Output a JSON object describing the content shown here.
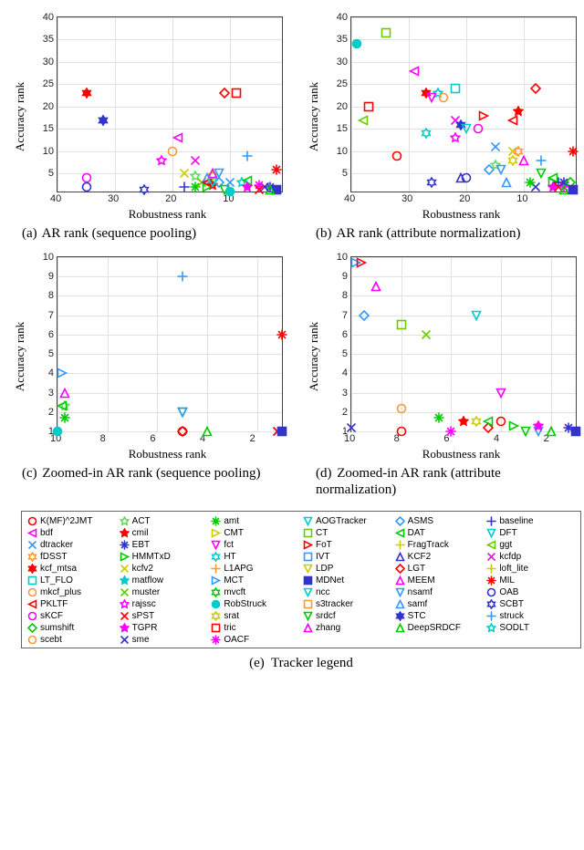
{
  "markers": {
    "K(MF)^2JMT": {
      "color": "#ff0000",
      "shape": "circle"
    },
    "ACT": {
      "color": "#66d966",
      "shape": "star5"
    },
    "amt": {
      "color": "#00cc00",
      "shape": "asterisk"
    },
    "AOGTracker": {
      "color": "#00cccc",
      "shape": "triD"
    },
    "ASMS": {
      "color": "#3399ff",
      "shape": "diamond"
    },
    "baseline": {
      "color": "#3333cc",
      "shape": "plus"
    },
    "bdf": {
      "color": "#ff00ff",
      "shape": "triL"
    },
    "cmil": {
      "color": "#ff0000",
      "shape": "star5f"
    },
    "CMT": {
      "color": "#cccc00",
      "shape": "triR"
    },
    "CT": {
      "color": "#66cc00",
      "shape": "square"
    },
    "DAT": {
      "color": "#00cc00",
      "shape": "triL"
    },
    "DFT": {
      "color": "#00cccc",
      "shape": "triD"
    },
    "dtracker": {
      "color": "#3399ff",
      "shape": "x"
    },
    "EBT": {
      "color": "#3333cc",
      "shape": "asterisk"
    },
    "fct": {
      "color": "#ff00ff",
      "shape": "triD"
    },
    "FoT": {
      "color": "#ff0000",
      "shape": "triR"
    },
    "FragTrack": {
      "color": "#cccc00",
      "shape": "plus"
    },
    "ggt": {
      "color": "#66cc00",
      "shape": "triL"
    },
    "fDSST": {
      "color": "#ff9933",
      "shape": "star6"
    },
    "HMMTxD": {
      "color": "#00cc00",
      "shape": "triR"
    },
    "HT": {
      "color": "#00cccc",
      "shape": "star6"
    },
    "IVT": {
      "color": "#3399ff",
      "shape": "square"
    },
    "KCF2": {
      "color": "#3333cc",
      "shape": "triU"
    },
    "kcfdp": {
      "color": "#ff00ff",
      "shape": "x"
    },
    "kcf_mtsa": {
      "color": "#ff0000",
      "shape": "star6f"
    },
    "kcfv2": {
      "color": "#cccc00",
      "shape": "x"
    },
    "L1APG": {
      "color": "#ff9933",
      "shape": "plus"
    },
    "LDP": {
      "color": "#cccc00",
      "shape": "triD"
    },
    "LGT": {
      "color": "#ff0000",
      "shape": "diamond"
    },
    "loft_lite": {
      "color": "#cccc00",
      "shape": "plus"
    },
    "LT_FLO": {
      "color": "#00cccc",
      "shape": "square"
    },
    "matflow": {
      "color": "#00cccc",
      "shape": "star5f"
    },
    "MCT": {
      "color": "#3399ff",
      "shape": "triR"
    },
    "MDNet": {
      "color": "#3333cc",
      "shape": "squaref"
    },
    "MEEM": {
      "color": "#ff00ff",
      "shape": "triU"
    },
    "MIL": {
      "color": "#ff0000",
      "shape": "asterisk"
    },
    "mkcf_plus": {
      "color": "#ff9933",
      "shape": "circle"
    },
    "muster": {
      "color": "#66cc00",
      "shape": "x"
    },
    "mvcft": {
      "color": "#00cc00",
      "shape": "star6"
    },
    "ncc": {
      "color": "#00cccc",
      "shape": "triD"
    },
    "nsamf": {
      "color": "#3399ff",
      "shape": "triD"
    },
    "OAB": {
      "color": "#3333cc",
      "shape": "circle"
    },
    "PKLTF": {
      "color": "#ff0000",
      "shape": "triL"
    },
    "rajssc": {
      "color": "#ff00ff",
      "shape": "star5"
    },
    "RobStruck": {
      "color": "#00cccc",
      "shape": "circlef"
    },
    "s3tracker": {
      "color": "#ff9933",
      "shape": "square"
    },
    "samf": {
      "color": "#3399ff",
      "shape": "triU"
    },
    "SCBT": {
      "color": "#3333cc",
      "shape": "star6"
    },
    "sKCF": {
      "color": "#ff00ff",
      "shape": "circle"
    },
    "sPST": {
      "color": "#ff0000",
      "shape": "x"
    },
    "srat": {
      "color": "#cccc00",
      "shape": "star6"
    },
    "srdcf": {
      "color": "#00cc00",
      "shape": "triD"
    },
    "STC": {
      "color": "#3333cc",
      "shape": "star6f"
    },
    "struck": {
      "color": "#3399ff",
      "shape": "plus"
    },
    "sumshift": {
      "color": "#00cc00",
      "shape": "diamond"
    },
    "TGPR": {
      "color": "#ff00ff",
      "shape": "star5f"
    },
    "tric": {
      "color": "#ff0000",
      "shape": "square"
    },
    "zhang": {
      "color": "#ff00ff",
      "shape": "triU"
    },
    "DeepSRDCF": {
      "color": "#00cc00",
      "shape": "triU"
    },
    "SODLT": {
      "color": "#00cccc",
      "shape": "star5"
    },
    "scebt": {
      "color": "#ff9933",
      "shape": "circle"
    },
    "sme": {
      "color": "#3333cc",
      "shape": "x"
    },
    "OACF": {
      "color": "#ff00ff",
      "shape": "asterisk"
    }
  },
  "legend_order": [
    "K(MF)^2JMT",
    "ACT",
    "amt",
    "AOGTracker",
    "ASMS",
    "baseline",
    "bdf",
    "cmil",
    "CMT",
    "CT",
    "DAT",
    "DFT",
    "dtracker",
    "EBT",
    "fct",
    "FoT",
    "FragTrack",
    "ggt",
    "fDSST",
    "HMMTxD",
    "HT",
    "IVT",
    "KCF2",
    "kcfdp",
    "kcf_mtsa",
    "kcfv2",
    "L1APG",
    "LDP",
    "LGT",
    "loft_lite",
    "LT_FLO",
    "matflow",
    "MCT",
    "MDNet",
    "MEEM",
    "MIL",
    "mkcf_plus",
    "muster",
    "mvcft",
    "ncc",
    "nsamf",
    "OAB",
    "PKLTF",
    "rajssc",
    "RobStruck",
    "s3tracker",
    "samf",
    "SCBT",
    "sKCF",
    "sPST",
    "srat",
    "srdcf",
    "STC",
    "struck",
    "sumshift",
    "TGPR",
    "tric",
    "zhang",
    "DeepSRDCF",
    "SODLT",
    "scebt",
    "sme",
    "OACF"
  ],
  "panel_a": {
    "caption_letter": "(a)",
    "caption_text": "AR rank (sequence pooling)",
    "xlabel": "Robustness rank",
    "ylabel": "Accuracy rank",
    "xlim": [
      40,
      1
    ],
    "ylim": [
      40,
      1
    ],
    "xticks": [
      40,
      30,
      20,
      10
    ],
    "yticks": [
      5,
      10,
      15,
      20,
      25,
      30,
      35,
      40
    ],
    "points": [
      {
        "m": "OAB",
        "x": 35,
        "y": 2
      },
      {
        "m": "sKCF",
        "x": 35,
        "y": 4
      },
      {
        "m": "STC",
        "x": 32,
        "y": 17
      },
      {
        "m": "star6_b",
        "x": 32,
        "y": 17,
        "mk": "SCBT"
      },
      {
        "m": "kcf_mtsa",
        "x": 35,
        "y": 23
      },
      {
        "m": "SCBT",
        "x": 25,
        "y": 1.5
      },
      {
        "m": "baseline",
        "x": 18,
        "y": 2
      },
      {
        "m": "rajssc",
        "x": 22,
        "y": 8
      },
      {
        "m": "mkcf_plus",
        "x": 20,
        "y": 10
      },
      {
        "m": "kcfv2",
        "x": 18,
        "y": 5
      },
      {
        "m": "kcfdp",
        "x": 16,
        "y": 8
      },
      {
        "m": "ACT",
        "x": 16,
        "y": 4.5
      },
      {
        "m": "bdf",
        "x": 19,
        "y": 13
      },
      {
        "m": "amt",
        "x": 16,
        "y": 2
      },
      {
        "m": "muster",
        "x": 15,
        "y": 3
      },
      {
        "m": "cmil",
        "x": 13,
        "y": 2.5
      },
      {
        "m": "srat",
        "x": 13,
        "y": 4.5
      },
      {
        "m": "samf",
        "x": 14,
        "y": 4
      },
      {
        "m": "MEEM",
        "x": 13,
        "y": 5
      },
      {
        "m": "ASMS",
        "x": 12,
        "y": 3
      },
      {
        "m": "nsamf",
        "x": 12,
        "y": 5
      },
      {
        "m": "HMMTxD",
        "x": 14,
        "y": 2
      },
      {
        "m": "srdcf",
        "x": 11,
        "y": 1.5
      },
      {
        "m": "dtracker",
        "x": 10,
        "y": 3
      },
      {
        "m": "PKLTF",
        "x": 14,
        "y": 3
      },
      {
        "m": "AOGTracker",
        "x": 13,
        "y": 3
      },
      {
        "m": "RobStruck",
        "x": 10,
        "y": 1
      },
      {
        "m": "LGT",
        "x": 11,
        "y": 23
      },
      {
        "m": "tric",
        "x": 9,
        "y": 23
      },
      {
        "m": "SODLT",
        "x": 8,
        "y": 3
      },
      {
        "m": "DAT",
        "x": 7,
        "y": 3.5
      },
      {
        "m": "TGPR",
        "x": 7,
        "y": 2
      },
      {
        "m": "struck",
        "x": 7,
        "y": 9
      },
      {
        "m": "EBT",
        "x": 3,
        "y": 2
      },
      {
        "m": "MDNet",
        "x": 2,
        "y": 1.5
      },
      {
        "m": "DeepSRDCF",
        "x": 3,
        "y": 1.5
      },
      {
        "m": "sme",
        "x": 4,
        "y": 2
      },
      {
        "m": "OACF",
        "x": 5,
        "y": 2.5
      },
      {
        "m": "sPST",
        "x": 5,
        "y": 1.5
      },
      {
        "m": "MIL",
        "x": 2,
        "y": 6
      }
    ]
  },
  "panel_b": {
    "caption_letter": "(b)",
    "caption_text": "AR rank (attribute normalization)",
    "xlabel": "Robustness rank",
    "ylabel": "Accuracy rank",
    "xlim": [
      40,
      1
    ],
    "ylim": [
      40,
      1
    ],
    "xticks": [
      40,
      30,
      20,
      10
    ],
    "yticks": [
      5,
      10,
      15,
      20,
      25,
      30,
      35,
      40
    ],
    "points": [
      {
        "m": "RobStruck",
        "x": 39,
        "y": 34
      },
      {
        "m": "ggt",
        "x": 38,
        "y": 17
      },
      {
        "m": "tric",
        "x": 37,
        "y": 20
      },
      {
        "m": "CT",
        "x": 34,
        "y": 36.5
      },
      {
        "m": "K(MF)^2JMT",
        "x": 32,
        "y": 9
      },
      {
        "m": "bdf",
        "x": 29,
        "y": 28
      },
      {
        "m": "kcf_mtsa",
        "x": 27,
        "y": 23
      },
      {
        "m": "SODLT",
        "x": 25,
        "y": 23
      },
      {
        "m": "fct",
        "x": 26,
        "y": 22
      },
      {
        "m": "mkcf_plus",
        "x": 24,
        "y": 22
      },
      {
        "m": "HT",
        "x": 27,
        "y": 14
      },
      {
        "m": "SCBT",
        "x": 26,
        "y": 3
      },
      {
        "m": "LT_FLO",
        "x": 22,
        "y": 24
      },
      {
        "m": "kcfdp",
        "x": 22,
        "y": 17
      },
      {
        "m": "rajssc",
        "x": 22,
        "y": 13
      },
      {
        "m": "STC",
        "x": 21,
        "y": 16
      },
      {
        "m": "KCF2",
        "x": 21,
        "y": 4
      },
      {
        "m": "OAB",
        "x": 20,
        "y": 4
      },
      {
        "m": "AOGTracker",
        "x": 20,
        "y": 15
      },
      {
        "m": "sKCF",
        "x": 18,
        "y": 15
      },
      {
        "m": "FoT",
        "x": 17,
        "y": 18
      },
      {
        "m": "ASMS",
        "x": 16,
        "y": 6
      },
      {
        "m": "ACT",
        "x": 15,
        "y": 7
      },
      {
        "m": "nsamf",
        "x": 14,
        "y": 6
      },
      {
        "m": "samf",
        "x": 13,
        "y": 3
      },
      {
        "m": "dtracker",
        "x": 15,
        "y": 11
      },
      {
        "m": "srat",
        "x": 12,
        "y": 8
      },
      {
        "m": "kcfv2",
        "x": 12,
        "y": 10
      },
      {
        "m": "PKLTF",
        "x": 12,
        "y": 17
      },
      {
        "m": "cmil",
        "x": 11,
        "y": 19
      },
      {
        "m": "fDSST",
        "x": 11,
        "y": 10
      },
      {
        "m": "MEEM",
        "x": 10,
        "y": 8
      },
      {
        "m": "LGT",
        "x": 8,
        "y": 24
      },
      {
        "m": "sme",
        "x": 8,
        "y": 2
      },
      {
        "m": "amt",
        "x": 9,
        "y": 3
      },
      {
        "m": "srdcf",
        "x": 7,
        "y": 5
      },
      {
        "m": "struck",
        "x": 7,
        "y": 8
      },
      {
        "m": "HMMTxD",
        "x": 5,
        "y": 3
      },
      {
        "m": "TGPR",
        "x": 5,
        "y": 2
      },
      {
        "m": "DAT",
        "x": 5,
        "y": 4
      },
      {
        "m": "baseline",
        "x": 4,
        "y": 3
      },
      {
        "m": "sPST",
        "x": 4,
        "y": 2
      },
      {
        "m": "OACF",
        "x": 3,
        "y": 2
      },
      {
        "m": "EBT",
        "x": 3,
        "y": 3
      },
      {
        "m": "DeepSRDCF",
        "x": 3,
        "y": 1.5
      },
      {
        "m": "sumshift",
        "x": 2,
        "y": 3
      },
      {
        "m": "MDNet",
        "x": 1.5,
        "y": 1.5
      },
      {
        "m": "MIL",
        "x": 1.5,
        "y": 10
      }
    ]
  },
  "panel_c": {
    "caption_letter": "(c)",
    "caption_text": "Zoomed-in AR rank (sequence pooling)",
    "xlabel": "Robustness rank",
    "ylabel": "Accuracy rank",
    "xlim": [
      10,
      1
    ],
    "ylim": [
      10,
      1
    ],
    "xticks": [
      10,
      8,
      6,
      4,
      2
    ],
    "yticks": [
      1,
      2,
      3,
      4,
      5,
      6,
      7,
      8,
      9,
      10
    ],
    "points": [
      {
        "m": "RobStruck",
        "x": 10,
        "y": 1
      },
      {
        "m": "amt",
        "x": 9.7,
        "y": 1.7
      },
      {
        "m": "ACT",
        "x": 9.7,
        "y": 2.3
      },
      {
        "m": "DAT",
        "x": 9.8,
        "y": 2.3
      },
      {
        "m": "MEEM",
        "x": 9.7,
        "y": 3
      },
      {
        "m": "MCT",
        "x": 9.8,
        "y": 4
      },
      {
        "m": "LGT",
        "x": 5,
        "y": 1
      },
      {
        "m": "K(MF)^2JMT",
        "x": 5,
        "y": 1
      },
      {
        "m": "AOGTracker",
        "x": 5,
        "y": 2
      },
      {
        "m": "srdcf",
        "x": 5,
        "y": 2
      },
      {
        "m": "nsamf",
        "x": 5,
        "y": 2
      },
      {
        "m": "struck",
        "x": 5,
        "y": 9
      },
      {
        "m": "DeepSRDCF",
        "x": 4,
        "y": 1
      },
      {
        "m": "sme",
        "x": 1.2,
        "y": 1
      },
      {
        "m": "sPST",
        "x": 1.2,
        "y": 1
      },
      {
        "m": "MDNet",
        "x": 1,
        "y": 1
      },
      {
        "m": "MIL",
        "x": 1,
        "y": 6
      }
    ]
  },
  "panel_d": {
    "caption_letter": "(d)",
    "caption_text": "Zoomed-in AR rank (attribute normalization)",
    "xlabel": "Robustness rank",
    "ylabel": "Accuracy rank",
    "xlim": [
      10,
      1
    ],
    "ylim": [
      10,
      1
    ],
    "xticks": [
      10,
      8,
      6,
      4,
      2
    ],
    "yticks": [
      1,
      2,
      3,
      4,
      5,
      6,
      7,
      8,
      9,
      10
    ],
    "points": [
      {
        "m": "sme",
        "x": 10,
        "y": 1.2
      },
      {
        "m": "MCT",
        "x": 9.8,
        "y": 9.7
      },
      {
        "m": "FoT",
        "x": 9.6,
        "y": 9.7
      },
      {
        "m": "zhang",
        "x": 9,
        "y": 8.5
      },
      {
        "m": "K(MF)^2JMT",
        "x": 8,
        "y": 1
      },
      {
        "m": "mkcf_plus",
        "x": 8,
        "y": 2.2
      },
      {
        "m": "ASMS",
        "x": 9.5,
        "y": 7
      },
      {
        "m": "CT",
        "x": 8,
        "y": 6.5
      },
      {
        "m": "amt",
        "x": 6.5,
        "y": 1.7
      },
      {
        "m": "OACF",
        "x": 6,
        "y": 1
      },
      {
        "m": "muster",
        "x": 7,
        "y": 6
      },
      {
        "m": "cmil",
        "x": 5.5,
        "y": 1.5
      },
      {
        "m": "srat",
        "x": 5,
        "y": 1.5
      },
      {
        "m": "LGT",
        "x": 4.5,
        "y": 1.2
      },
      {
        "m": "fct",
        "x": 4,
        "y": 3
      },
      {
        "m": "K(MF)^2JMT",
        "x": 4,
        "y": 1.5
      },
      {
        "m": "AOGTracker",
        "x": 5,
        "y": 7
      },
      {
        "m": "HMMTxD",
        "x": 3.5,
        "y": 1.3
      },
      {
        "m": "DAT",
        "x": 4.5,
        "y": 1.5
      },
      {
        "m": "srdcf",
        "x": 3,
        "y": 1
      },
      {
        "m": "nsamf",
        "x": 2.5,
        "y": 1
      },
      {
        "m": "TGPR",
        "x": 2.5,
        "y": 1.3
      },
      {
        "m": "DeepSRDCF",
        "x": 2,
        "y": 1
      },
      {
        "m": "MDNet",
        "x": 1,
        "y": 1
      },
      {
        "m": "EBT",
        "x": 1.3,
        "y": 1.2
      }
    ]
  },
  "legend_caption": {
    "letter": "(e)",
    "text": "Tracker legend"
  }
}
